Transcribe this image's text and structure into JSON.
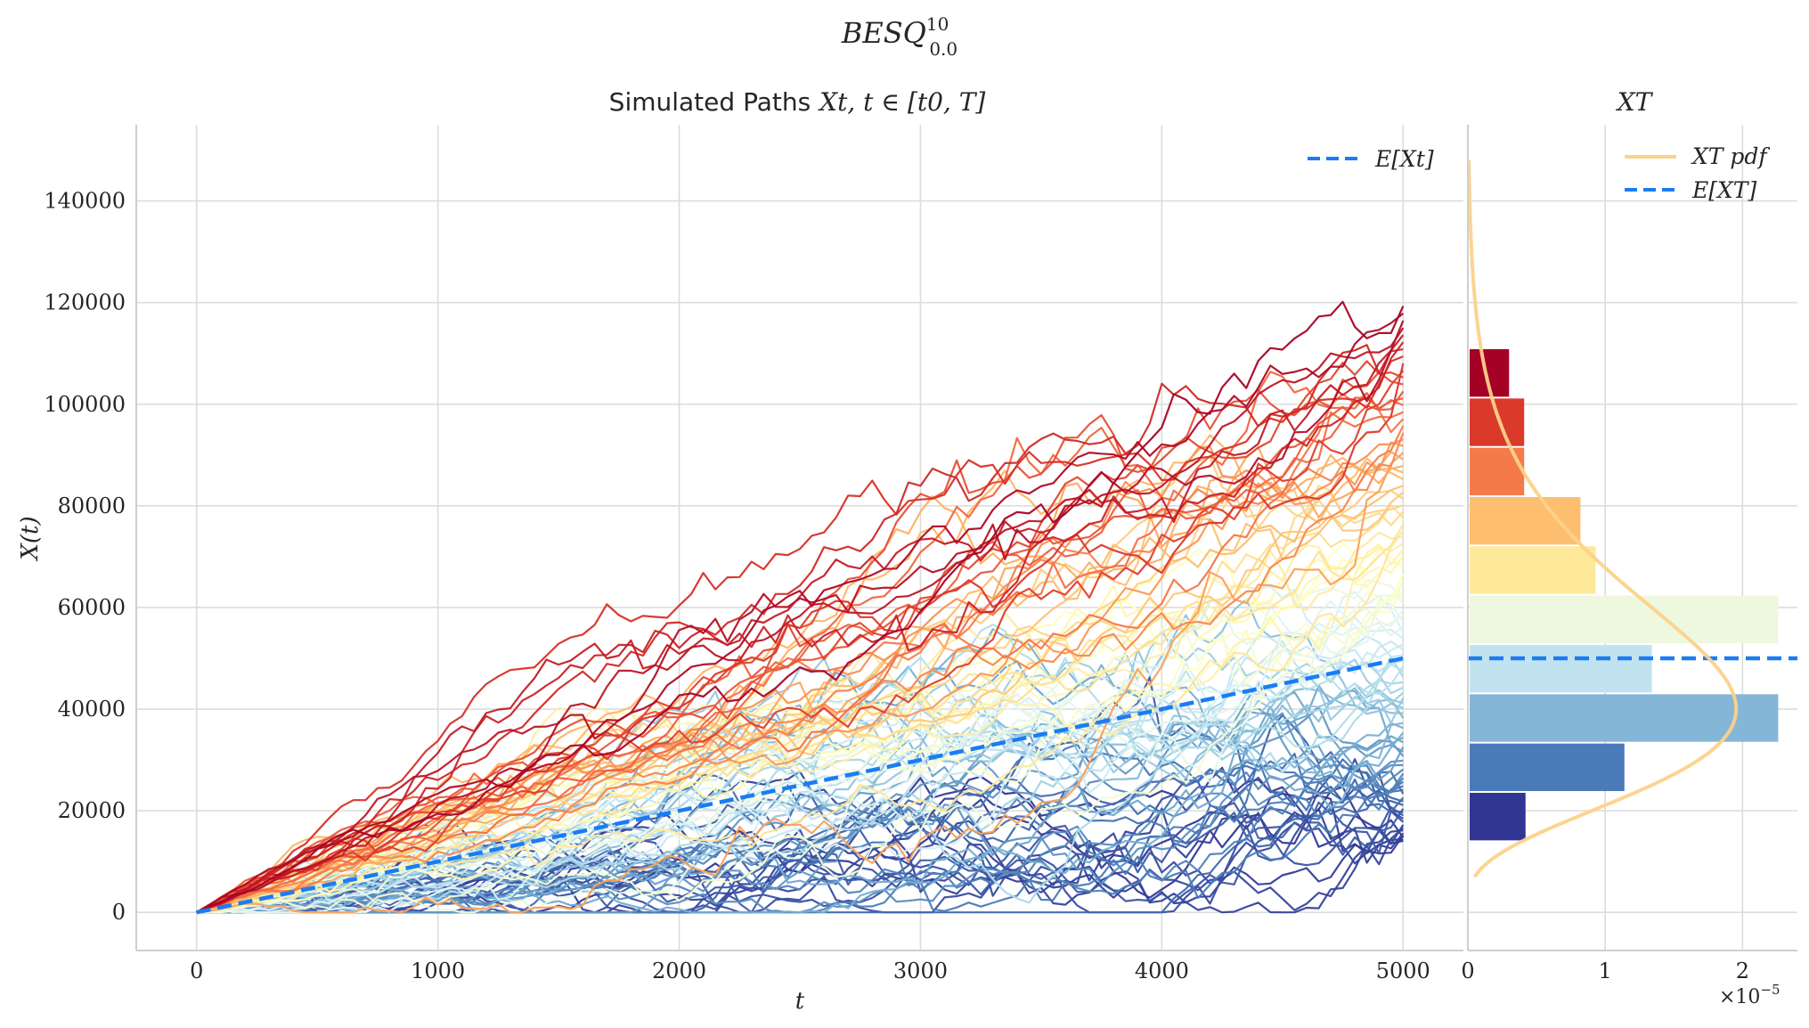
{
  "figure": {
    "suptitle_main": "BESQ",
    "suptitle_sup": "10",
    "suptitle_sub": "0.0"
  },
  "colors": {
    "expectation": "#1a7cf5",
    "pdf": "#fcd28a",
    "axis": "#cfcfcf",
    "grid": "#dcdcdc",
    "text": "#262626",
    "colormap": "RdYlBu_r"
  },
  "chart_data": [
    {
      "type": "line",
      "title": "Simulated Paths X_t, t ∈ [t_0, T]",
      "title_prefix": "Simulated Paths",
      "title_math": "Xt, t ∈ [t0, T]",
      "xlabel": "t",
      "ylabel": "X(t)",
      "xlim": [
        -250,
        5250
      ],
      "ylim": [
        -7500,
        155000
      ],
      "x_ticks": [
        0,
        1000,
        2000,
        3000,
        4000,
        5000
      ],
      "x_tick_labels": [
        "0",
        "1000",
        "2000",
        "3000",
        "4000",
        "5000"
      ],
      "y_ticks": [
        0,
        20000,
        40000,
        60000,
        80000,
        100000,
        120000,
        140000
      ],
      "y_tick_labels": [
        "0",
        "20000",
        "40000",
        "60000",
        "80000",
        "100000",
        "120000",
        "140000"
      ],
      "grid": true,
      "legend": {
        "placement": "top-right",
        "entries": [
          "E[X_t]"
        ],
        "labels_display": [
          "E[Xt]"
        ]
      },
      "paths": {
        "count": 100,
        "t_start": 0,
        "t_end": 5000,
        "steps": 100,
        "x0": 0,
        "final_value_range": [
          14000,
          120000
        ],
        "colormap": "RdYlBu_r",
        "colored_by": "final value"
      },
      "series": [
        {
          "name": "E[X_t]",
          "style": "dashed",
          "x": [
            0,
            5000
          ],
          "values": [
            0,
            50000
          ]
        }
      ]
    },
    {
      "type": "bar",
      "orientation": "horizontal",
      "title": "X_T",
      "title_display": "XT",
      "xlabel": "",
      "x_ticks": [
        0,
        1,
        2
      ],
      "x_tick_labels": [
        "0",
        "1",
        "2"
      ],
      "x_scale_label": "×10⁻⁵",
      "x_scale_base": "×10",
      "x_scale_exp": "−5",
      "xlim": [
        0,
        2.4
      ],
      "ylim": [
        -7500,
        155000
      ],
      "grid": true,
      "legend": {
        "placement": "top-right",
        "entries": [
          "X_T pdf",
          "E[X_T]"
        ],
        "labels_display": [
          "XT pdf",
          "E[XT]"
        ]
      },
      "bins": [
        {
          "y0": 14000,
          "y1": 23700,
          "density": 0.42,
          "color": "#313695"
        },
        {
          "y0": 23700,
          "y1": 33400,
          "density": 1.14,
          "color": "#4a7ab8"
        },
        {
          "y0": 33400,
          "y1": 43100,
          "density": 2.26,
          "color": "#83b6d7"
        },
        {
          "y0": 43100,
          "y1": 52800,
          "density": 1.34,
          "color": "#c1e3ef"
        },
        {
          "y0": 52800,
          "y1": 62500,
          "density": 2.26,
          "color": "#eef8df"
        },
        {
          "y0": 62500,
          "y1": 72200,
          "density": 0.93,
          "color": "#fee99b"
        },
        {
          "y0": 72200,
          "y1": 81900,
          "density": 0.82,
          "color": "#fdbe70"
        },
        {
          "y0": 81900,
          "y1": 91600,
          "density": 0.41,
          "color": "#f57a4a"
        },
        {
          "y0": 91600,
          "y1": 101300,
          "density": 0.41,
          "color": "#db3a2a"
        },
        {
          "y0": 101300,
          "y1": 111000,
          "density": 0.3,
          "color": "#a50026"
        }
      ],
      "pdf": {
        "name": "X_T pdf",
        "type": "chi-squared (scaled)",
        "df": 10,
        "scale": 5000,
        "y_range": [
          7000,
          148000
        ]
      },
      "expectation": {
        "name": "E[X_T]",
        "value": 50000
      }
    }
  ]
}
